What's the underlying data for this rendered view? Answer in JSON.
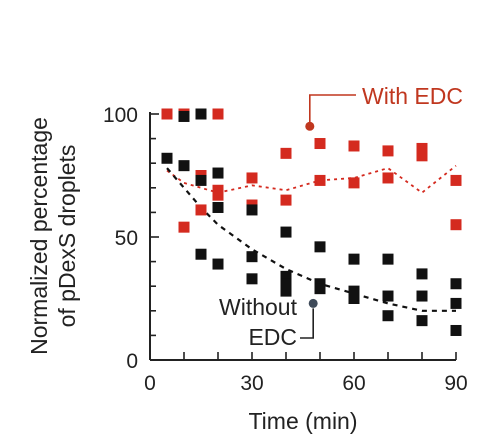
{
  "chart_data": {
    "type": "scatter",
    "xlabel": "Time (min)",
    "ylabel_line1": "Normalized percentage",
    "ylabel_line2": "of pDexS droplets",
    "xlim": [
      0,
      90
    ],
    "ylim": [
      0,
      100
    ],
    "xticks": [
      0,
      30,
      60,
      90
    ],
    "yticks": [
      0,
      50,
      100
    ],
    "grid": false,
    "series": [
      {
        "name": "With EDC",
        "color": "#d42a1f",
        "marker": "square",
        "points": [
          [
            5,
            100
          ],
          [
            10,
            100
          ],
          [
            15,
            100
          ],
          [
            20,
            100
          ],
          [
            10,
            54
          ],
          [
            15,
            61
          ],
          [
            15,
            75
          ],
          [
            20,
            67
          ],
          [
            20,
            69
          ],
          [
            30,
            63
          ],
          [
            30,
            74
          ],
          [
            40,
            65
          ],
          [
            40,
            84
          ],
          [
            50,
            73
          ],
          [
            50,
            88
          ],
          [
            60,
            72
          ],
          [
            60,
            87
          ],
          [
            70,
            74
          ],
          [
            70,
            85
          ],
          [
            80,
            83
          ],
          [
            80,
            86
          ],
          [
            90,
            55
          ],
          [
            90,
            73
          ]
        ],
        "trend": [
          [
            5,
            77
          ],
          [
            10,
            72
          ],
          [
            15,
            70
          ],
          [
            20,
            68
          ],
          [
            30,
            71
          ],
          [
            40,
            69
          ],
          [
            50,
            73
          ],
          [
            60,
            74
          ],
          [
            70,
            78
          ],
          [
            80,
            68
          ],
          [
            90,
            79
          ]
        ]
      },
      {
        "name": "Without EDC",
        "color": "#111111",
        "marker": "square",
        "points": [
          [
            5,
            82
          ],
          [
            10,
            79
          ],
          [
            10,
            99
          ],
          [
            15,
            100
          ],
          [
            15,
            73
          ],
          [
            15,
            43
          ],
          [
            20,
            76
          ],
          [
            20,
            62
          ],
          [
            20,
            39
          ],
          [
            30,
            61
          ],
          [
            30,
            42
          ],
          [
            30,
            33
          ],
          [
            40,
            52
          ],
          [
            40,
            34
          ],
          [
            40,
            31
          ],
          [
            40,
            28
          ],
          [
            50,
            46
          ],
          [
            50,
            31
          ],
          [
            50,
            29
          ],
          [
            60,
            41
          ],
          [
            60,
            28
          ],
          [
            60,
            25
          ],
          [
            70,
            41
          ],
          [
            70,
            26
          ],
          [
            70,
            18
          ],
          [
            80,
            35
          ],
          [
            80,
            26
          ],
          [
            80,
            16
          ],
          [
            90,
            31
          ],
          [
            90,
            23
          ],
          [
            90,
            12
          ]
        ],
        "trend": [
          [
            5,
            78
          ],
          [
            10,
            70
          ],
          [
            15,
            62
          ],
          [
            20,
            55
          ],
          [
            30,
            45
          ],
          [
            40,
            37
          ],
          [
            50,
            31
          ],
          [
            60,
            27
          ],
          [
            70,
            23
          ],
          [
            80,
            20
          ],
          [
            90,
            20
          ]
        ]
      }
    ],
    "annotations": [
      {
        "text": "With EDC",
        "color": "#c0371f",
        "point": [
          47,
          95
        ]
      },
      {
        "text_line1": "Without",
        "text_line2": "EDC",
        "color": "#222222",
        "point": [
          48,
          23
        ]
      }
    ]
  }
}
